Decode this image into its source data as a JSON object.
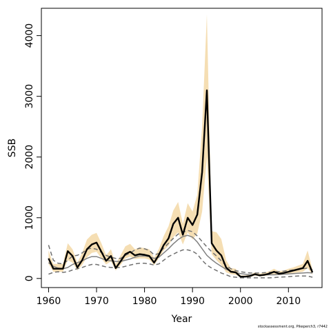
{
  "chart_data": {
    "type": "line",
    "xlabel": "Year",
    "ylabel": "SSB",
    "xlim": [
      1958.5,
      2017
    ],
    "ylim": [
      -150,
      4450
    ],
    "x_ticks": [
      1960,
      1970,
      1980,
      1990,
      2000,
      2010
    ],
    "y_ticks": [
      0,
      1000,
      2000,
      3000,
      4000
    ],
    "grid": false,
    "years": [
      1960,
      1961,
      1962,
      1963,
      1964,
      1965,
      1966,
      1967,
      1968,
      1969,
      1970,
      1971,
      1972,
      1973,
      1974,
      1975,
      1976,
      1977,
      1978,
      1979,
      1980,
      1981,
      1982,
      1983,
      1984,
      1985,
      1986,
      1987,
      1988,
      1989,
      1990,
      1991,
      1992,
      1993,
      1994,
      1995,
      1996,
      1997,
      1998,
      1999,
      2000,
      2001,
      2002,
      2003,
      2004,
      2005,
      2006,
      2007,
      2008,
      2009,
      2010,
      2011,
      2012,
      2013,
      2014,
      2015
    ],
    "series": [
      {
        "role": "estimate",
        "color": "#000000",
        "values": [
          330,
          160,
          160,
          160,
          450,
          370,
          180,
          300,
          480,
          560,
          590,
          440,
          290,
          370,
          170,
          280,
          400,
          440,
          380,
          400,
          390,
          370,
          260,
          390,
          550,
          660,
          900,
          1000,
          720,
          1000,
          880,
          1050,
          1750,
          3100,
          580,
          460,
          380,
          180,
          110,
          100,
          30,
          30,
          40,
          70,
          50,
          60,
          80,
          110,
          80,
          90,
          110,
          130,
          150,
          170,
          290,
          100
        ]
      },
      {
        "role": "estimate-band",
        "color": "#f5deb3",
        "lower": [
          240,
          110,
          110,
          110,
          300,
          260,
          130,
          220,
          350,
          420,
          440,
          330,
          230,
          280,
          130,
          220,
          330,
          360,
          320,
          330,
          330,
          310,
          220,
          330,
          460,
          540,
          680,
          760,
          560,
          760,
          640,
          740,
          1100,
          2000,
          400,
          300,
          220,
          100,
          70,
          60,
          20,
          20,
          25,
          45,
          35,
          40,
          55,
          75,
          55,
          60,
          75,
          90,
          100,
          110,
          170,
          60
        ],
        "upper": [
          460,
          240,
          240,
          240,
          580,
          480,
          260,
          420,
          640,
          720,
          750,
          580,
          380,
          480,
          240,
          380,
          530,
          570,
          480,
          510,
          500,
          480,
          340,
          490,
          700,
          860,
          1120,
          1260,
          900,
          1240,
          1100,
          1380,
          2500,
          4350,
          780,
          760,
          650,
          300,
          170,
          160,
          50,
          50,
          60,
          100,
          80,
          90,
          120,
          160,
          120,
          130,
          160,
          180,
          210,
          240,
          460,
          150
        ]
      },
      {
        "role": "reference-median",
        "color": "#808080",
        "values": [
          260,
          200,
          170,
          160,
          180,
          230,
          260,
          290,
          330,
          360,
          360,
          330,
          300,
          290,
          280,
          280,
          300,
          320,
          350,
          370,
          370,
          360,
          330,
          350,
          420,
          490,
          570,
          640,
          690,
          710,
          680,
          600,
          490,
          380,
          310,
          250,
          200,
          150,
          120,
          100,
          80,
          70,
          60,
          60,
          60,
          60,
          60,
          60,
          65,
          70,
          75,
          80,
          85,
          90,
          95,
          90
        ]
      },
      {
        "role": "reference-upper",
        "color": "#707070",
        "values": [
          550,
          300,
          250,
          240,
          300,
          370,
          380,
          420,
          480,
          500,
          480,
          430,
          380,
          350,
          330,
          330,
          380,
          420,
          470,
          500,
          490,
          460,
          390,
          410,
          500,
          580,
          660,
          730,
          760,
          790,
          770,
          700,
          610,
          520,
          440,
          370,
          290,
          210,
          160,
          130,
          110,
          100,
          90,
          90,
          90,
          95,
          100,
          105,
          115,
          120,
          130,
          140,
          150,
          160,
          170,
          140
        ]
      },
      {
        "role": "reference-lower",
        "color": "#707070",
        "values": [
          70,
          100,
          110,
          100,
          110,
          140,
          160,
          180,
          210,
          230,
          230,
          210,
          190,
          180,
          180,
          180,
          200,
          220,
          240,
          250,
          250,
          240,
          220,
          240,
          300,
          360,
          400,
          440,
          470,
          470,
          450,
          400,
          300,
          220,
          170,
          130,
          90,
          60,
          30,
          20,
          10,
          10,
          10,
          10,
          10,
          10,
          10,
          15,
          20,
          25,
          30,
          35,
          40,
          40,
          40,
          20
        ]
      }
    ]
  },
  "footnote": "stockassessment.org, Pikeperch3, r7442"
}
